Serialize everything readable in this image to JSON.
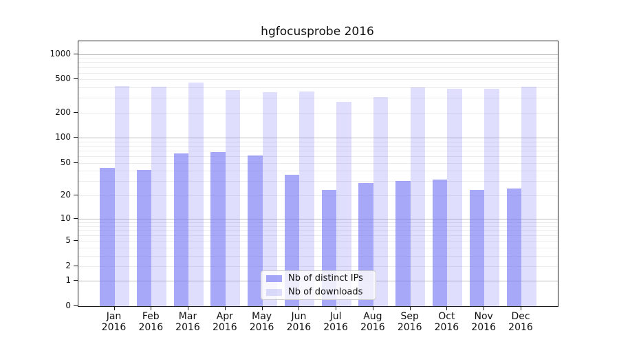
{
  "title": "hgfocusprobe 2016",
  "chart_data": {
    "type": "bar",
    "title": "hgfocusprobe 2016",
    "categories": [
      "Jan 2016",
      "Feb 2016",
      "Mar 2016",
      "Apr 2016",
      "May 2016",
      "Jun 2016",
      "Jul 2016",
      "Aug 2016",
      "Sep 2016",
      "Oct 2016",
      "Nov 2016",
      "Dec 2016"
    ],
    "x_tick_month": [
      "Jan",
      "Feb",
      "Mar",
      "Apr",
      "May",
      "Jun",
      "Jul",
      "Aug",
      "Sep",
      "Oct",
      "Nov",
      "Dec"
    ],
    "x_tick_year": "2016",
    "series": [
      {
        "name": "Nb of distinct IPs",
        "color": "rgba(110,110,245,0.6)",
        "values": [
          43,
          41,
          65,
          67,
          61,
          36,
          23,
          28,
          30,
          31,
          23,
          24
        ]
      },
      {
        "name": "Nb of downloads",
        "color": "rgba(110,110,245,0.22)",
        "values": [
          417,
          406,
          461,
          374,
          353,
          358,
          270,
          305,
          398,
          388,
          388,
          406
        ]
      }
    ],
    "y_scale": "log1p",
    "y_ticks": [
      0,
      1,
      2,
      5,
      10,
      20,
      50,
      100,
      200,
      500,
      1000
    ],
    "ylim": [
      0,
      1420
    ],
    "grid": {
      "major_lines": [
        1,
        10,
        100,
        1000
      ],
      "minor_multipliers": [
        2,
        3,
        4,
        5,
        6,
        7,
        8,
        9
      ],
      "major_color": "#bbbbbb",
      "minor_color": "#ebebeb"
    },
    "legend_position": "bottom-center"
  },
  "legend": {
    "entries": [
      "Nb of distinct IPs",
      "Nb of downloads"
    ]
  },
  "colors": {
    "bar_distinct_ips": "rgba(110,110,245,0.6)",
    "bar_downloads": "rgba(110,110,245,0.22)",
    "axis": "#1a1a1a",
    "background": "#ffffff"
  }
}
